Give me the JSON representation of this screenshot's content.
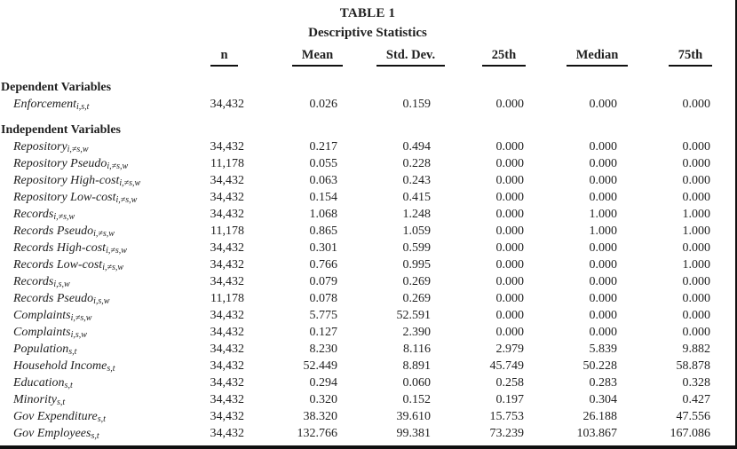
{
  "table": {
    "title": "TABLE 1",
    "subtitle": "Descriptive Statistics",
    "colors": {
      "ink": "#1f1f1f",
      "rule": "#101010"
    },
    "columns": [
      "n",
      "Mean",
      "Std. Dev.",
      "25th",
      "Median",
      "75th"
    ],
    "sections": [
      {
        "title": "Dependent Variables",
        "rows": [
          {
            "label": "Enforcement",
            "sub": "i,s,t",
            "values": [
              "34,432",
              "0.026",
              "0.159",
              "0.000",
              "0.000",
              "0.000"
            ]
          }
        ]
      },
      {
        "title": "Independent Variables",
        "rows": [
          {
            "label": "Repository",
            "sub": "i,≠s,w",
            "values": [
              "34,432",
              "0.217",
              "0.494",
              "0.000",
              "0.000",
              "0.000"
            ]
          },
          {
            "label": "Repository Pseudo",
            "sub": "i,≠s,w",
            "values": [
              "11,178",
              "0.055",
              "0.228",
              "0.000",
              "0.000",
              "0.000"
            ]
          },
          {
            "label": "Repository High-cost",
            "sub": "i,≠s,w",
            "values": [
              "34,432",
              "0.063",
              "0.243",
              "0.000",
              "0.000",
              "0.000"
            ]
          },
          {
            "label": "Repository Low-cost",
            "sub": "i,≠s,w",
            "values": [
              "34,432",
              "0.154",
              "0.415",
              "0.000",
              "0.000",
              "0.000"
            ]
          },
          {
            "label": "Records",
            "sub": "i,≠s,w",
            "values": [
              "34,432",
              "1.068",
              "1.248",
              "0.000",
              "1.000",
              "1.000"
            ]
          },
          {
            "label": "Records Pseudo",
            "sub": "i,≠s,w",
            "values": [
              "11,178",
              "0.865",
              "1.059",
              "0.000",
              "1.000",
              "1.000"
            ]
          },
          {
            "label": "Records High-cost",
            "sub": "i,≠s,w",
            "values": [
              "34,432",
              "0.301",
              "0.599",
              "0.000",
              "0.000",
              "0.000"
            ]
          },
          {
            "label": "Records Low-cost",
            "sub": "i,≠s,w",
            "values": [
              "34,432",
              "0.766",
              "0.995",
              "0.000",
              "0.000",
              "1.000"
            ]
          },
          {
            "label": "Records",
            "sub": "i,s,w",
            "values": [
              "34,432",
              "0.079",
              "0.269",
              "0.000",
              "0.000",
              "0.000"
            ]
          },
          {
            "label": "Records Pseudo",
            "sub": "i,s,w",
            "values": [
              "11,178",
              "0.078",
              "0.269",
              "0.000",
              "0.000",
              "0.000"
            ]
          },
          {
            "label": "Complaints",
            "sub": "i,≠s,w",
            "values": [
              "34,432",
              "5.775",
              "52.591",
              "0.000",
              "0.000",
              "0.000"
            ]
          },
          {
            "label": "Complaints",
            "sub": "i,s,w",
            "values": [
              "34,432",
              "0.127",
              "2.390",
              "0.000",
              "0.000",
              "0.000"
            ]
          },
          {
            "label": "Population",
            "sub": "s,t",
            "values": [
              "34,432",
              "8.230",
              "8.116",
              "2.979",
              "5.839",
              "9.882"
            ]
          },
          {
            "label": "Household Income",
            "sub": "s,t",
            "values": [
              "34,432",
              "52.449",
              "8.891",
              "45.749",
              "50.228",
              "58.878"
            ]
          },
          {
            "label": "Education",
            "sub": "s,t",
            "values": [
              "34,432",
              "0.294",
              "0.060",
              "0.258",
              "0.283",
              "0.328"
            ]
          },
          {
            "label": "Minority",
            "sub": "s,t",
            "values": [
              "34,432",
              "0.320",
              "0.152",
              "0.197",
              "0.304",
              "0.427"
            ]
          },
          {
            "label": "Gov Expenditure",
            "sub": "s,t",
            "values": [
              "34,432",
              "38.320",
              "39.610",
              "15.753",
              "26.188",
              "47.556"
            ]
          },
          {
            "label": "Gov Employees",
            "sub": "s,t",
            "values": [
              "34,432",
              "132.766",
              "99.381",
              "73.239",
              "103.867",
              "167.086"
            ]
          }
        ]
      }
    ]
  }
}
